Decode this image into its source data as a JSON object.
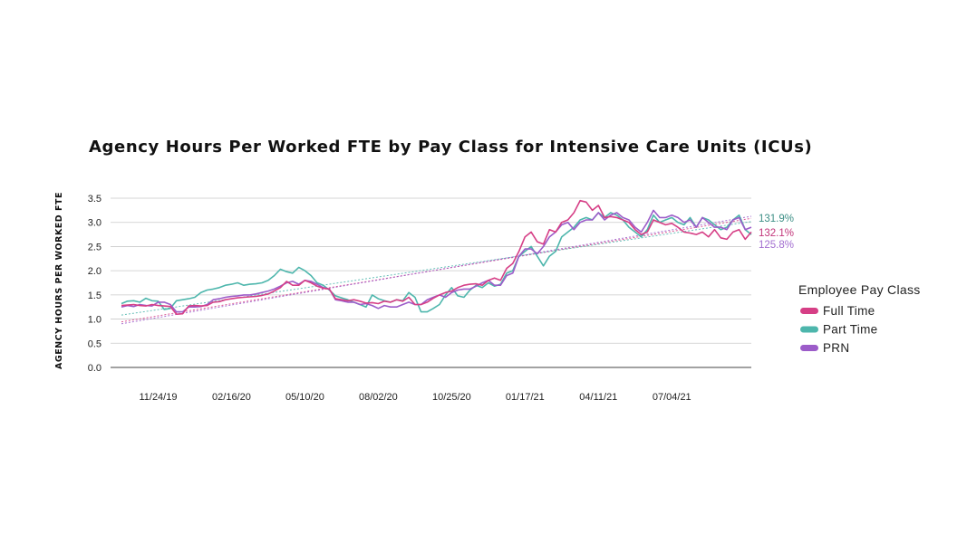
{
  "chart_data": {
    "type": "line",
    "title": "Agency Hours Per Worked FTE by Pay Class for Intensive Care Units (ICUs)",
    "xlabel": "",
    "ylabel": "AGENCY HOURS PER WORKED FTE",
    "ylim": [
      0,
      3.5
    ],
    "yticks": [
      "0.0",
      "0.5",
      "1.0",
      "1.5",
      "2.0",
      "2.5",
      "3.0",
      "3.5"
    ],
    "xticks": [
      "11/24/19",
      "02/16/20",
      "05/10/20",
      "08/02/20",
      "10/25/20",
      "01/17/21",
      "04/11/21",
      "07/04/21"
    ],
    "grid": true,
    "legend": {
      "title": "Employee Pay Class",
      "position": "right"
    },
    "trend_labels": [
      {
        "series": "Part Time",
        "text": "131.9%"
      },
      {
        "series": "Full Time",
        "text": "132.1%"
      },
      {
        "series": "PRN",
        "text": "125.8%"
      }
    ],
    "series": [
      {
        "name": "Full Time",
        "color": "#d63f86",
        "values": [
          1.28,
          1.29,
          1.3,
          1.28,
          1.27,
          1.3,
          1.28,
          1.27,
          1.26,
          1.1,
          1.11,
          1.27,
          1.28,
          1.27,
          1.28,
          1.35,
          1.36,
          1.4,
          1.42,
          1.44,
          1.45,
          1.46,
          1.47,
          1.49,
          1.52,
          1.58,
          1.65,
          1.78,
          1.7,
          1.7,
          1.8,
          1.75,
          1.68,
          1.64,
          1.62,
          1.42,
          1.4,
          1.38,
          1.4,
          1.37,
          1.33,
          1.34,
          1.32,
          1.37,
          1.35,
          1.4,
          1.37,
          1.45,
          1.3,
          1.3,
          1.35,
          1.43,
          1.5,
          1.55,
          1.58,
          1.65,
          1.7,
          1.72,
          1.73,
          1.7,
          1.8,
          1.85,
          1.8,
          2.05,
          2.15,
          2.4,
          2.7,
          2.8,
          2.6,
          2.55,
          2.85,
          2.8,
          3.0,
          3.05,
          3.2,
          3.45,
          3.42,
          3.25,
          3.35,
          3.1,
          3.12,
          3.1,
          3.05,
          3.0,
          2.85,
          2.75,
          2.8,
          3.05,
          3.0,
          2.95,
          2.98,
          2.9,
          2.8,
          2.78,
          2.75,
          2.8,
          2.7,
          2.85,
          2.68,
          2.65,
          2.8,
          2.85,
          2.65,
          2.8
        ]
      },
      {
        "name": "Part Time",
        "color": "#4db6ac",
        "values": [
          1.32,
          1.37,
          1.38,
          1.35,
          1.43,
          1.38,
          1.37,
          1.2,
          1.22,
          1.38,
          1.4,
          1.42,
          1.45,
          1.55,
          1.6,
          1.62,
          1.65,
          1.7,
          1.72,
          1.75,
          1.7,
          1.72,
          1.73,
          1.75,
          1.8,
          1.9,
          2.03,
          1.98,
          1.95,
          2.07,
          2.0,
          1.9,
          1.75,
          1.7,
          1.6,
          1.48,
          1.44,
          1.4,
          1.35,
          1.3,
          1.25,
          1.5,
          1.42,
          1.38,
          1.35,
          1.4,
          1.38,
          1.55,
          1.45,
          1.15,
          1.15,
          1.22,
          1.3,
          1.5,
          1.65,
          1.48,
          1.45,
          1.6,
          1.7,
          1.65,
          1.75,
          1.68,
          1.72,
          1.95,
          2.0,
          2.3,
          2.4,
          2.5,
          2.3,
          2.1,
          2.3,
          2.4,
          2.7,
          2.8,
          2.9,
          3.05,
          3.1,
          3.05,
          3.2,
          3.1,
          3.2,
          3.15,
          3.05,
          2.9,
          2.8,
          2.7,
          2.85,
          3.15,
          3.0,
          3.05,
          3.1,
          3.0,
          2.95,
          3.1,
          2.9,
          3.1,
          3.05,
          2.95,
          2.85,
          2.9,
          3.05,
          3.15,
          2.85,
          2.75
        ]
      },
      {
        "name": "PRN",
        "color": "#9c5cc9",
        "values": [
          1.25,
          1.28,
          1.26,
          1.3,
          1.28,
          1.27,
          1.35,
          1.35,
          1.3,
          1.15,
          1.15,
          1.25,
          1.25,
          1.26,
          1.3,
          1.4,
          1.42,
          1.45,
          1.47,
          1.48,
          1.5,
          1.5,
          1.52,
          1.55,
          1.58,
          1.62,
          1.68,
          1.75,
          1.78,
          1.72,
          1.8,
          1.78,
          1.72,
          1.65,
          1.62,
          1.4,
          1.38,
          1.35,
          1.35,
          1.3,
          1.32,
          1.28,
          1.22,
          1.28,
          1.25,
          1.25,
          1.3,
          1.35,
          1.3,
          1.3,
          1.4,
          1.45,
          1.5,
          1.45,
          1.55,
          1.6,
          1.62,
          1.62,
          1.68,
          1.75,
          1.8,
          1.7,
          1.7,
          1.9,
          1.95,
          2.3,
          2.45,
          2.45,
          2.35,
          2.5,
          2.7,
          2.8,
          2.95,
          3.0,
          2.85,
          3.0,
          3.05,
          3.05,
          3.2,
          3.05,
          3.15,
          3.2,
          3.1,
          3.05,
          2.9,
          2.8,
          3.0,
          3.25,
          3.1,
          3.1,
          3.15,
          3.1,
          3.0,
          3.05,
          2.9,
          3.1,
          3.0,
          2.9,
          2.9,
          2.85,
          3.05,
          3.1,
          2.85,
          2.9
        ]
      }
    ]
  }
}
